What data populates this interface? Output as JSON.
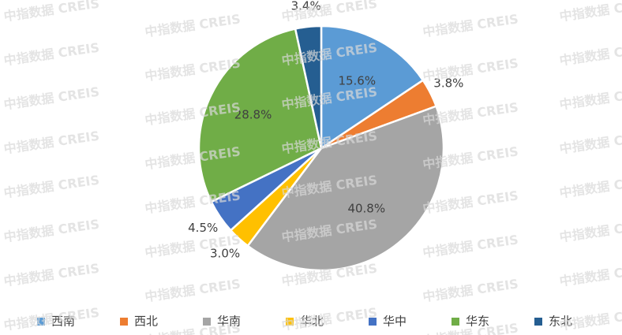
{
  "chart_data": {
    "type": "pie",
    "categories": [
      "西南",
      "西北",
      "华南",
      "华北",
      "华中",
      "华东",
      "东北"
    ],
    "values": [
      15.6,
      3.8,
      40.8,
      3.0,
      4.5,
      28.8,
      3.4
    ],
    "value_labels": [
      "15.6%",
      "3.8%",
      "40.8%",
      "3.0%",
      "4.5%",
      "28.8%",
      "3.4%"
    ],
    "colors": [
      "#5b9bd5",
      "#ed7d31",
      "#a5a5a5",
      "#ffc000",
      "#4472c4",
      "#70ad47",
      "#255e91"
    ],
    "legend": "bottom",
    "watermark": "中指数据 CREIS"
  }
}
